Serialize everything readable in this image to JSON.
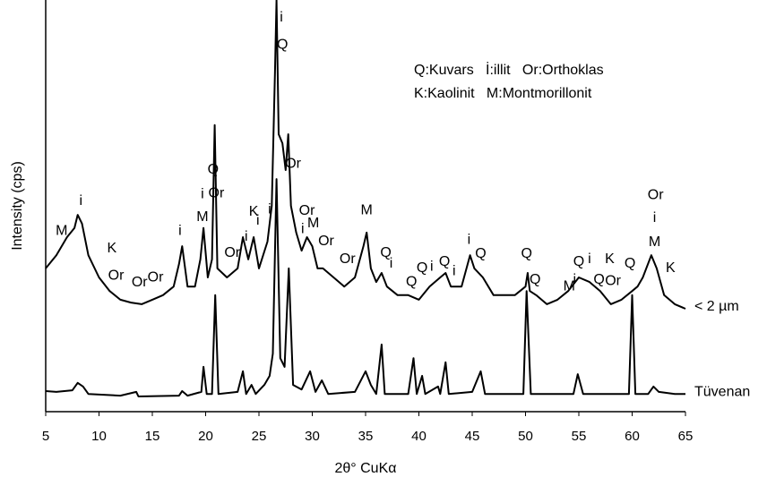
{
  "chart_data": {
    "type": "line",
    "xlabel": "2θ° CuKα",
    "ylabel": "Intensity (cps)",
    "xlim": [
      5,
      65
    ],
    "xticks": [
      5,
      10,
      15,
      20,
      25,
      30,
      35,
      40,
      45,
      50,
      55,
      60,
      65
    ],
    "ylim": [
      0,
      100
    ],
    "key": [
      "Q:Kuvars   İ:illit   Or:Orthoklas",
      "K:Kaolinit   M:Montmorillonit"
    ],
    "series": [
      {
        "name": "< 2 µm",
        "color": "#000000",
        "x": [
          5,
          6,
          7,
          7.7,
          8,
          8.4,
          9,
          10,
          11,
          12,
          13,
          14,
          15,
          16,
          17,
          17.5,
          17.8,
          18.3,
          19,
          19.5,
          19.8,
          20.2,
          20.6,
          20.85,
          21.1,
          22,
          23,
          23.5,
          24,
          24.5,
          25,
          25.8,
          26.2,
          26.5,
          26.65,
          26.85,
          27.2,
          27.5,
          27.75,
          28,
          28.5,
          29,
          29.5,
          30,
          30.5,
          31,
          32,
          33,
          34,
          34.8,
          35.1,
          35.5,
          36,
          36.5,
          37,
          38,
          39,
          40,
          41,
          42,
          42.5,
          43,
          44,
          44.8,
          45.2,
          46,
          47,
          48,
          49,
          50,
          50.2,
          50.4,
          51,
          52,
          53,
          54,
          55,
          56,
          57,
          58,
          59,
          60,
          60.5,
          61,
          61.8,
          62.3,
          63,
          64,
          65
        ],
        "values": [
          34.8,
          38.0,
          42.4,
          44.6,
          47.8,
          45.7,
          38.0,
          32.6,
          29.3,
          27.2,
          26.5,
          26.1,
          27.2,
          28.3,
          30.4,
          35.9,
          40.2,
          30.4,
          30.4,
          37.0,
          44.6,
          32.6,
          37.0,
          69.6,
          34.8,
          32.6,
          34.8,
          42.4,
          37.0,
          42.4,
          34.8,
          41.3,
          50.0,
          82.6,
          100,
          67.4,
          65.2,
          58.7,
          67.4,
          50.0,
          43.5,
          39.1,
          42.4,
          40.2,
          34.8,
          34.8,
          32.6,
          30.4,
          32.6,
          40.2,
          43.5,
          34.8,
          31.5,
          33.7,
          30.4,
          28.3,
          28.3,
          27.2,
          30.4,
          32.6,
          33.7,
          30.4,
          30.4,
          38.0,
          34.8,
          32.6,
          28.3,
          28.3,
          28.3,
          30.4,
          33.7,
          29.3,
          28.3,
          26.1,
          27.2,
          29.3,
          32.6,
          31.5,
          29.3,
          26.1,
          27.2,
          29.3,
          30.4,
          32.6,
          38.0,
          34.8,
          28.3,
          26.1,
          25.0
        ]
      },
      {
        "name": "Tüvenan",
        "color": "#000000",
        "x": [
          5,
          6,
          7.5,
          8,
          8.5,
          9,
          12,
          13.5,
          13.7,
          17.5,
          17.8,
          18.3,
          19.6,
          19.8,
          20.1,
          20.6,
          20.9,
          21.2,
          23,
          23.5,
          23.8,
          24.3,
          24.7,
          25.5,
          26,
          26.3,
          26.65,
          27,
          27.4,
          27.8,
          28.2,
          29,
          29.8,
          30.3,
          30.9,
          31.5,
          34,
          35,
          35.5,
          36,
          36.5,
          36.8,
          39,
          39.5,
          39.8,
          40.3,
          40.6,
          41.8,
          42,
          42.5,
          42.8,
          45,
          45.8,
          46.2,
          49.8,
          50.1,
          50.5,
          54.5,
          54.9,
          55.4,
          59.7,
          60,
          60.3,
          61.5,
          62,
          62.5,
          64,
          65
        ],
        "values": [
          5.0,
          4.8,
          5.2,
          7.0,
          6.1,
          4.3,
          3.9,
          4.8,
          3.7,
          3.9,
          5.0,
          3.9,
          4.8,
          10.9,
          4.3,
          4.3,
          28.3,
          4.3,
          4.8,
          9.8,
          4.3,
          6.5,
          4.3,
          6.5,
          8.7,
          14.1,
          56.5,
          13.0,
          10.9,
          34.8,
          6.5,
          5.4,
          9.8,
          4.8,
          7.6,
          4.3,
          4.8,
          9.8,
          6.5,
          4.3,
          16.3,
          4.3,
          4.3,
          13.0,
          4.3,
          8.7,
          4.3,
          6.1,
          4.3,
          12.0,
          4.3,
          4.8,
          9.8,
          4.3,
          4.3,
          29.3,
          4.3,
          4.3,
          9.1,
          4.3,
          4.3,
          28.3,
          4.3,
          4.3,
          6.1,
          4.8,
          4.3,
          4.3
        ]
      }
    ],
    "annotations": [
      {
        "text": "M",
        "x": 6.5,
        "y": 43.9
      },
      {
        "text": "i",
        "x": 8.3,
        "y": 51.1
      },
      {
        "text": "K",
        "x": 11.2,
        "y": 39.6
      },
      {
        "text": "Or",
        "x": 11.6,
        "y": 33.0
      },
      {
        "text": "Or",
        "x": 13.8,
        "y": 31.3
      },
      {
        "text": "Or",
        "x": 15.3,
        "y": 32.6
      },
      {
        "text": "i",
        "x": 17.6,
        "y": 43.9
      },
      {
        "text": "i",
        "x": 19.7,
        "y": 52.8
      },
      {
        "text": "M",
        "x": 19.7,
        "y": 47.2
      },
      {
        "text": "Q",
        "x": 20.7,
        "y": 58.7
      },
      {
        "text": "Or",
        "x": 21.0,
        "y": 53.0
      },
      {
        "text": "Or",
        "x": 22.5,
        "y": 38.5
      },
      {
        "text": "i",
        "x": 23.8,
        "y": 42.4
      },
      {
        "text": "K",
        "x": 24.5,
        "y": 48.5
      },
      {
        "text": "i",
        "x": 24.9,
        "y": 46.3
      },
      {
        "text": "i",
        "x": 26.0,
        "y": 49.1
      },
      {
        "text": "i",
        "x": 27.1,
        "y": 95.7
      },
      {
        "text": "Q",
        "x": 27.2,
        "y": 89.1
      },
      {
        "text": "Or",
        "x": 28.2,
        "y": 60.2
      },
      {
        "text": "Or",
        "x": 29.5,
        "y": 48.7
      },
      {
        "text": "i",
        "x": 29.1,
        "y": 44.3
      },
      {
        "text": "M",
        "x": 30.1,
        "y": 45.7
      },
      {
        "text": "Or",
        "x": 31.3,
        "y": 41.3
      },
      {
        "text": "Or",
        "x": 33.3,
        "y": 37.0
      },
      {
        "text": "M",
        "x": 35.1,
        "y": 48.9
      },
      {
        "text": "Q",
        "x": 36.9,
        "y": 38.5
      },
      {
        "text": "i",
        "x": 37.4,
        "y": 35.9
      },
      {
        "text": "Q",
        "x": 39.3,
        "y": 31.5
      },
      {
        "text": "Q",
        "x": 40.3,
        "y": 34.8
      },
      {
        "text": "i",
        "x": 41.2,
        "y": 35.2
      },
      {
        "text": "Q",
        "x": 42.4,
        "y": 36.3
      },
      {
        "text": "i",
        "x": 43.3,
        "y": 34.1
      },
      {
        "text": "i",
        "x": 44.7,
        "y": 41.7
      },
      {
        "text": "Q",
        "x": 45.8,
        "y": 38.3
      },
      {
        "text": "Q",
        "x": 50.1,
        "y": 38.3
      },
      {
        "text": "Q",
        "x": 50.9,
        "y": 32.0
      },
      {
        "text": "M",
        "x": 54.1,
        "y": 30.4
      },
      {
        "text": "i",
        "x": 54.6,
        "y": 32.0
      },
      {
        "text": "Q",
        "x": 55.0,
        "y": 36.3
      },
      {
        "text": "i",
        "x": 56.0,
        "y": 37.0
      },
      {
        "text": "Q",
        "x": 56.9,
        "y": 32.0
      },
      {
        "text": "K",
        "x": 57.9,
        "y": 37.0
      },
      {
        "text": "Or",
        "x": 58.2,
        "y": 31.7
      },
      {
        "text": "Q",
        "x": 59.8,
        "y": 35.9
      },
      {
        "text": "Or",
        "x": 62.2,
        "y": 52.6
      },
      {
        "text": "i",
        "x": 62.1,
        "y": 47.0
      },
      {
        "text": "M",
        "x": 62.1,
        "y": 41.1
      },
      {
        "text": "K",
        "x": 63.6,
        "y": 34.8
      }
    ]
  }
}
